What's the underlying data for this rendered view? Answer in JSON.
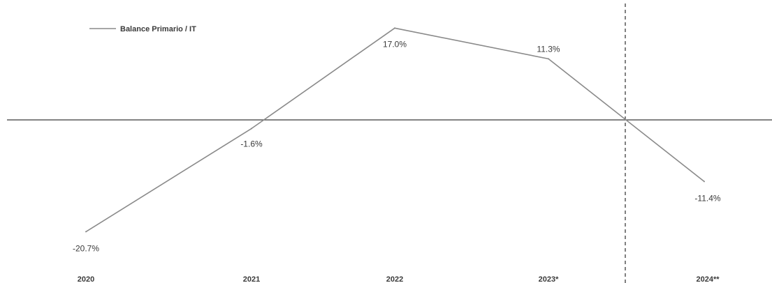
{
  "chart_data": {
    "type": "line",
    "categories": [
      "2020",
      "2021",
      "2022",
      "2023*",
      "2024**"
    ],
    "series": [
      {
        "name": "Balance Primario / IT",
        "values": [
          -20.7,
          -1.6,
          17.0,
          11.3,
          -11.4
        ],
        "labels": [
          "-20.7%",
          "-1.6%",
          "17.0%",
          "11.3%",
          "-11.4%"
        ]
      }
    ],
    "legend": "top-left",
    "grid": false,
    "zero_line": true,
    "projection_divider": "between 2023* and 2024**",
    "colors": {
      "line": "#8a8a8a",
      "zero_line": "#5a5a5a",
      "divider": "#4a4a4a",
      "text": "#3a3a3a"
    }
  }
}
